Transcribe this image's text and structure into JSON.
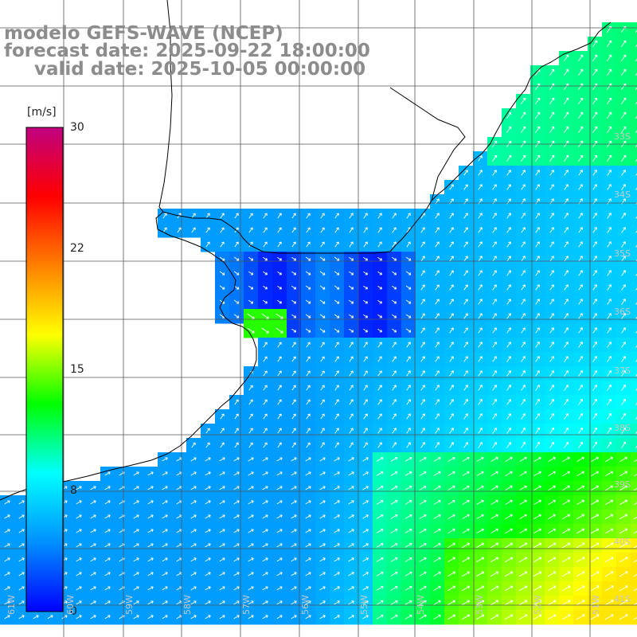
{
  "title": {
    "model": "modelo GEFS-WAVE (NCEP)",
    "forecast": "forecast date: 2025-09-22 18:00:00",
    "valid": "valid date: 2025-10-05 00:00:00"
  },
  "colorbar": {
    "unit": "[m/s]",
    "min": 0,
    "max": 30,
    "ticks": [
      "30",
      "22",
      "15",
      "8",
      "0"
    ],
    "colors": [
      "#0000ff",
      "#0090ff",
      "#00ffff",
      "#00ff00",
      "#ffff00",
      "#ff8000",
      "#ff0000",
      "#c0007f"
    ]
  },
  "lat_labels": [
    "33S",
    "34S",
    "35S",
    "36S",
    "37S",
    "38S",
    "39S",
    "40S",
    "41S"
  ],
  "lon_labels": [
    "61W",
    "60W",
    "59W",
    "58W",
    "57W",
    "56W",
    "55W",
    "54W",
    "53W",
    "52W",
    "51W"
  ],
  "colors": {
    "land": "#ffffff",
    "coast": "#000000",
    "grid": "#555555",
    "title_text": "#8c8c8c",
    "arrow": "#ffffff"
  }
}
